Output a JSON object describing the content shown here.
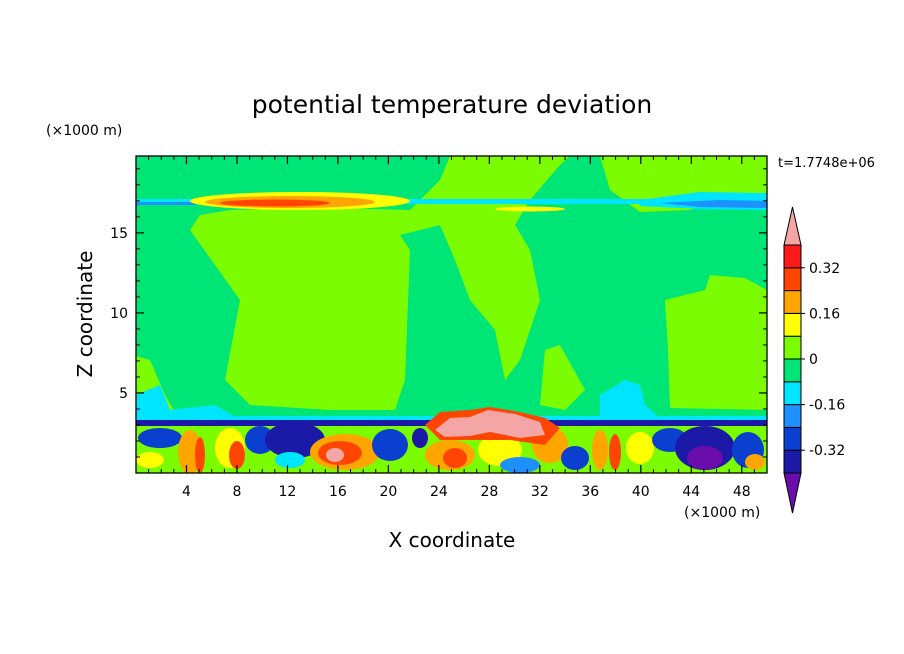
{
  "chart_data": {
    "type": "heatmap",
    "title": "potential temperature deviation",
    "xlabel": "X coordinate",
    "ylabel": "Z coordinate",
    "x_unit": "(×1000 m)",
    "y_unit": "(×1000 m)",
    "time_label": "t=1.7748e+06",
    "xlim": [
      0,
      50
    ],
    "ylim": [
      0,
      19.8
    ],
    "x_ticks": [
      4,
      8,
      12,
      16,
      20,
      24,
      28,
      32,
      36,
      40,
      44,
      48
    ],
    "y_ticks": [
      5,
      10,
      15
    ],
    "colorbar": {
      "levels": [
        -0.4,
        -0.32,
        -0.24,
        -0.16,
        -0.08,
        0,
        0.08,
        0.16,
        0.24,
        0.32,
        0.4
      ],
      "colors": [
        "#6a0dab",
        "#1a1aa6",
        "#0b3fd0",
        "#1e90ff",
        "#00e5ff",
        "#00e676",
        "#7cfc00",
        "#ffff00",
        "#ffa500",
        "#ff4500",
        "#ff1a1a",
        "#f4a6a6"
      ],
      "tick_labels": [
        "0.32",
        "0.16",
        "0",
        "-0.16",
        "-0.32"
      ],
      "tick_values": [
        0.32,
        0.16,
        0,
        -0.16,
        -0.32
      ]
    },
    "background_color": "#00e676"
  }
}
